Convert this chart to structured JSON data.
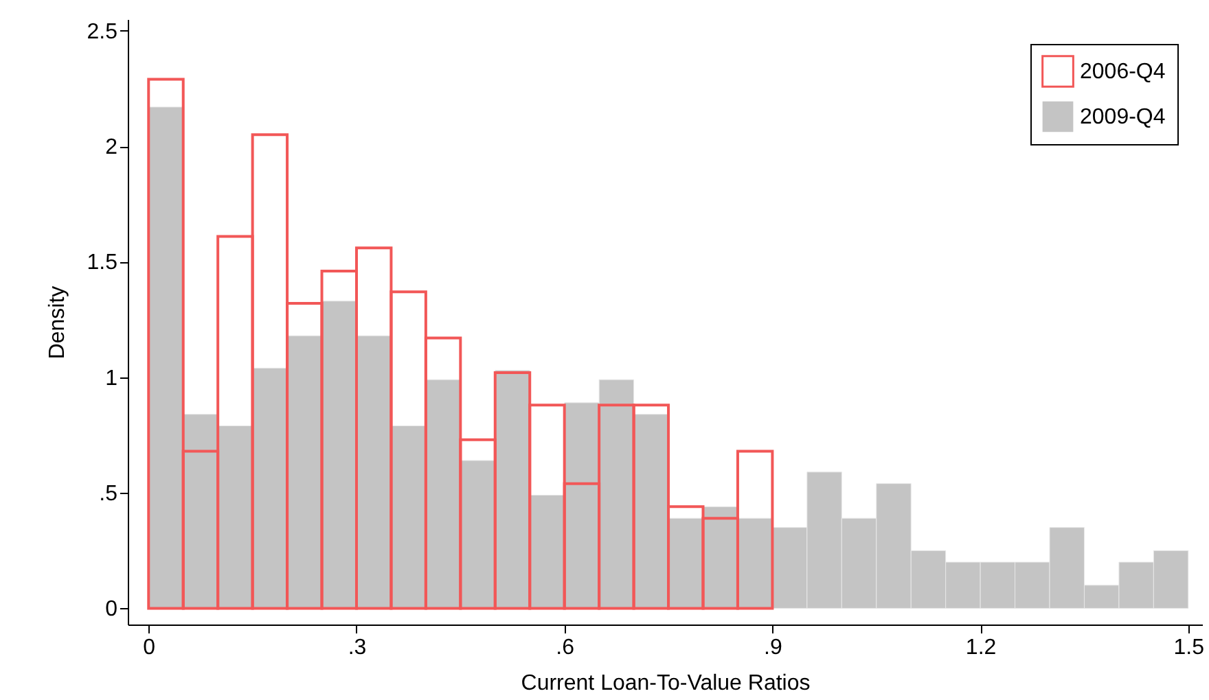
{
  "chart_data": {
    "type": "histogram",
    "xlabel": "Current Loan-To-Value Ratios",
    "ylabel": "Density",
    "bins": [
      0,
      0.05,
      0.1,
      0.15,
      0.2,
      0.25,
      0.3,
      0.35,
      0.4,
      0.45,
      0.5,
      0.55,
      0.6,
      0.65,
      0.7,
      0.75,
      0.8,
      0.85,
      0.9,
      0.95,
      1.0,
      1.05,
      1.1,
      1.15,
      1.2,
      1.25,
      1.3,
      1.35,
      1.4,
      1.45,
      1.5
    ],
    "series": [
      {
        "name": "2006-Q4",
        "color": "#f25757",
        "bins": [
          0,
          0.05,
          0.1,
          0.15,
          0.2,
          0.25,
          0.3,
          0.35,
          0.4,
          0.45,
          0.5,
          0.55,
          0.6,
          0.65,
          0.7,
          0.75,
          0.8,
          0.85,
          0.9
        ],
        "values": [
          2.29,
          0.68,
          1.61,
          2.05,
          1.32,
          1.46,
          1.56,
          1.37,
          1.17,
          0.73,
          1.02,
          0.88,
          0.54,
          0.88,
          0.88,
          0.44,
          0.39,
          0.68
        ]
      },
      {
        "name": "2009-Q4",
        "color": "#c4c4c4",
        "values": [
          2.17,
          0.84,
          0.79,
          1.04,
          1.18,
          1.33,
          1.18,
          0.79,
          0.99,
          0.64,
          1.03,
          0.49,
          0.89,
          0.99,
          0.84,
          0.39,
          0.44,
          0.39,
          0.35,
          0.59,
          0.39,
          0.54,
          0.25,
          0.2,
          0.2,
          0.2,
          0.35,
          0.1,
          0.2,
          0.25
        ]
      }
    ],
    "xlim": [
      -0.03,
      1.52
    ],
    "xticks": [
      0,
      {
        "value": 0.3,
        "label": ".3"
      },
      {
        "value": 0.6,
        "label": ".6"
      },
      {
        "value": 0.9,
        "label": ".9"
      },
      1.2,
      1.5
    ],
    "ylim": [
      -0.07,
      2.55
    ],
    "yticks": [
      0,
      {
        "value": 0.5,
        "label": ".5"
      },
      1,
      1.5,
      2,
      2.5
    ],
    "legend": "top right",
    "grid": false
  }
}
